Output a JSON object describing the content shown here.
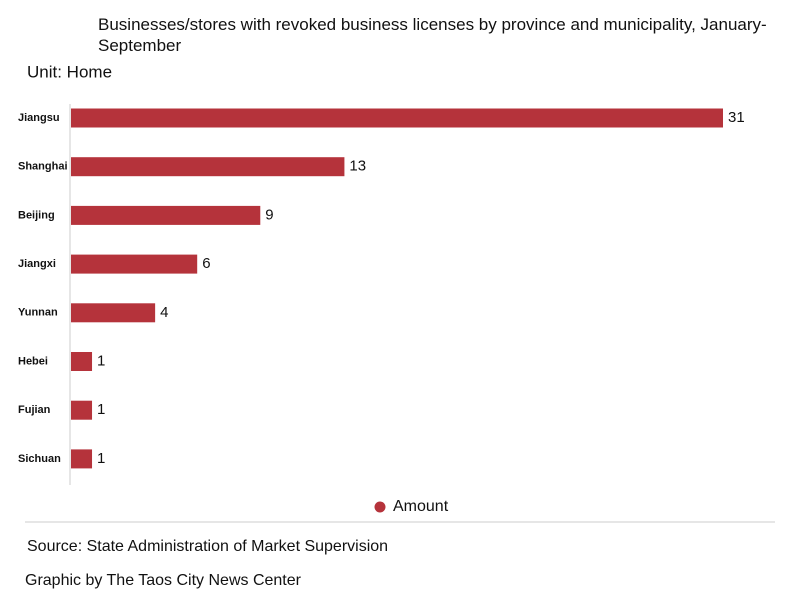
{
  "chart_data": {
    "type": "bar",
    "orientation": "horizontal",
    "title": "Businesses/stores with revoked business licenses by province and municipality, January-September",
    "unit": "Unit: Home",
    "categories": [
      "Jiangsu",
      "Shanghai",
      "Beijing",
      "Jiangxi",
      "Yunnan",
      "Hebei",
      "Fujian",
      "Sichuan"
    ],
    "series": [
      {
        "name": "Amount",
        "color": "#b5333b",
        "values": [
          31,
          13,
          9,
          6,
          4,
          1,
          1,
          1
        ]
      }
    ],
    "legend": "bottom",
    "source": "Source: State Administration of Market Supervision",
    "credit": "Graphic by The Taos City News Center"
  }
}
